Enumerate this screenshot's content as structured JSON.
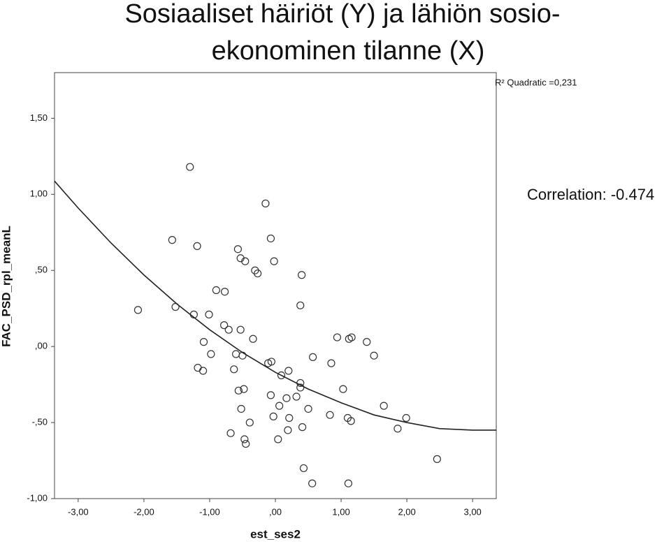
{
  "chart_data": {
    "type": "scatter",
    "title": [
      "Sosiaaliset häiriöt (Y) ja lähiön sosio-",
      "ekonominen tilanne (X)"
    ],
    "x_label": "est_ses2",
    "y_label": "FAC_PSD_rpl_meanL",
    "annotations": [
      "R² Quadratic =0,231",
      "Correlation: -0.474"
    ],
    "xlim": [
      -3.36,
      3.36
    ],
    "ylim": [
      -1.0,
      1.8
    ],
    "xticks": [
      {
        "value": -3,
        "label": "-3,00"
      },
      {
        "value": -2,
        "label": "-2,00"
      },
      {
        "value": -1,
        "label": "-1,00"
      },
      {
        "value": 0,
        "label": ",00"
      },
      {
        "value": 1,
        "label": "1,00"
      },
      {
        "value": 2,
        "label": "2,00"
      },
      {
        "value": 3,
        "label": "3,00"
      }
    ],
    "yticks": [
      {
        "value": -1,
        "label": "-1,00"
      },
      {
        "value": -0.5,
        "label": "-,50"
      },
      {
        "value": 0,
        "label": ",00"
      },
      {
        "value": 0.5,
        "label": ",50"
      },
      {
        "value": 1,
        "label": "1,00"
      },
      {
        "value": 1.5,
        "label": "1,50"
      }
    ],
    "series": [
      {
        "color": "#333333",
        "x": [
          -2.09,
          -1.57,
          -1.52,
          -1.3,
          -1.19,
          -1.24,
          -1.09,
          -1.18,
          -1.1,
          -1.01,
          -0.98,
          -0.9,
          -0.77,
          -0.78,
          -0.71,
          -0.57,
          -0.53,
          -0.46,
          -0.53,
          -0.6,
          -0.5,
          -0.63,
          -0.56,
          -0.48,
          -0.52,
          -0.68,
          -0.39,
          -0.47,
          -0.45,
          -0.31,
          -0.27,
          -0.34,
          -0.15,
          -0.07,
          -0.02,
          -0.11,
          -0.06,
          0.09,
          0.2,
          -0.07,
          -0.03,
          0.06,
          0.17,
          0.04,
          0.21,
          0.19,
          0.32,
          0.38,
          0.38,
          0.4,
          0.38,
          0.5,
          0.41,
          0.43,
          0.56,
          0.57,
          0.83,
          0.85,
          0.94,
          1.03,
          1.12,
          1.16,
          1.1,
          1.15,
          1.11,
          1.39,
          1.5,
          1.65,
          1.86,
          1.99,
          2.46
        ],
        "values": [
          0.24,
          0.7,
          0.26,
          1.18,
          0.66,
          0.21,
          0.03,
          -0.14,
          -0.16,
          0.21,
          -0.05,
          0.37,
          0.36,
          0.14,
          0.11,
          0.64,
          0.58,
          0.56,
          0.11,
          -0.05,
          -0.06,
          -0.15,
          -0.29,
          -0.28,
          -0.41,
          -0.57,
          -0.5,
          -0.61,
          -0.64,
          0.5,
          0.48,
          0.05,
          0.94,
          0.71,
          0.56,
          -0.11,
          -0.1,
          -0.19,
          -0.16,
          -0.32,
          -0.46,
          -0.39,
          -0.34,
          -0.61,
          -0.47,
          -0.55,
          -0.33,
          -0.24,
          -0.27,
          0.47,
          0.27,
          -0.41,
          -0.53,
          -0.8,
          -0.9,
          -0.07,
          -0.45,
          -0.11,
          0.06,
          -0.28,
          0.05,
          0.06,
          -0.47,
          -0.49,
          -0.9,
          0.03,
          -0.06,
          -0.39,
          -0.54,
          -0.47,
          -0.74
        ]
      },
      {
        "type": "line",
        "color": "#222222",
        "x": [
          -3.36,
          -3,
          -2.5,
          -2,
          -1.5,
          -1,
          -0.5,
          0,
          0.5,
          1,
          1.5,
          2,
          2.5,
          3,
          3.36
        ],
        "values": [
          1.087,
          0.91,
          0.68,
          0.47,
          0.28,
          0.11,
          -0.04,
          -0.17,
          -0.28,
          -0.37,
          -0.45,
          -0.5,
          -0.54,
          -0.55,
          -0.55
        ]
      }
    ]
  }
}
